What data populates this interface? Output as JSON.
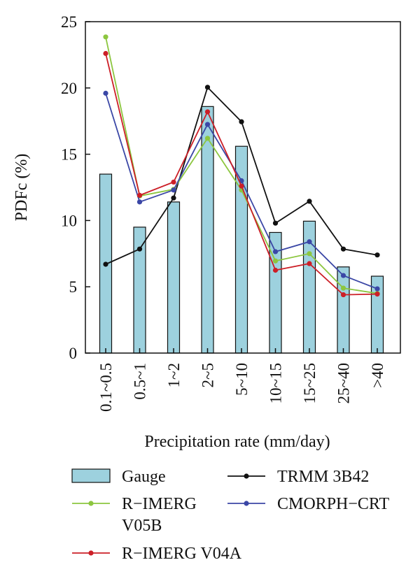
{
  "chart_data": {
    "type": "bar",
    "xlabel": "Precipitation rate (mm/day)",
    "ylabel": "PDFc (%)",
    "ylim": [
      0,
      25
    ],
    "yticks": [
      "0",
      "5",
      "10",
      "15",
      "20",
      "25"
    ],
    "categories": [
      "0.1~0.5",
      "0.5~1",
      "1~2",
      "2~5",
      "5~10",
      "10~15",
      "15~25",
      "25~40",
      ">40"
    ],
    "bar_series": {
      "name": "Gauge",
      "color": "#9dd1de",
      "values": [
        13.5,
        9.5,
        11.4,
        18.6,
        15.6,
        9.1,
        9.95,
        6.5,
        5.8
      ]
    },
    "line_series": [
      {
        "name": "TRMM 3B42",
        "color": "#111111",
        "values": [
          6.7,
          7.85,
          11.7,
          20.05,
          17.45,
          9.8,
          11.45,
          7.85,
          7.4
        ]
      },
      {
        "name": "R−IMERG V05B",
        "color": "#8cc63f",
        "values": [
          23.85,
          11.85,
          12.35,
          16.2,
          12.3,
          6.95,
          7.5,
          4.9,
          4.5
        ]
      },
      {
        "name": "CMORPH−CRT",
        "color": "#3b47a6",
        "values": [
          19.6,
          11.4,
          12.3,
          17.25,
          13.0,
          7.65,
          8.4,
          5.85,
          4.85
        ]
      },
      {
        "name": "R−IMERG V04A",
        "color": "#cc1f27",
        "values": [
          22.6,
          11.9,
          12.9,
          18.2,
          12.6,
          6.25,
          6.75,
          4.4,
          4.45
        ]
      }
    ],
    "legend": {
      "position": "bottom",
      "entries": [
        {
          "label": "Gauge",
          "kind": "bar",
          "series": "Gauge"
        },
        {
          "label": "TRMM 3B42",
          "kind": "line",
          "series": "TRMM 3B42"
        },
        {
          "label": "R−IMERG",
          "label_cont": "V05B",
          "kind": "line",
          "series": "R−IMERG V05B"
        },
        {
          "label": "CMORPH−CRT",
          "kind": "line",
          "series": "CMORPH−CRT"
        },
        {
          "label": "R−IMERG V04A",
          "kind": "line",
          "series": "R−IMERG V04A"
        }
      ]
    }
  }
}
